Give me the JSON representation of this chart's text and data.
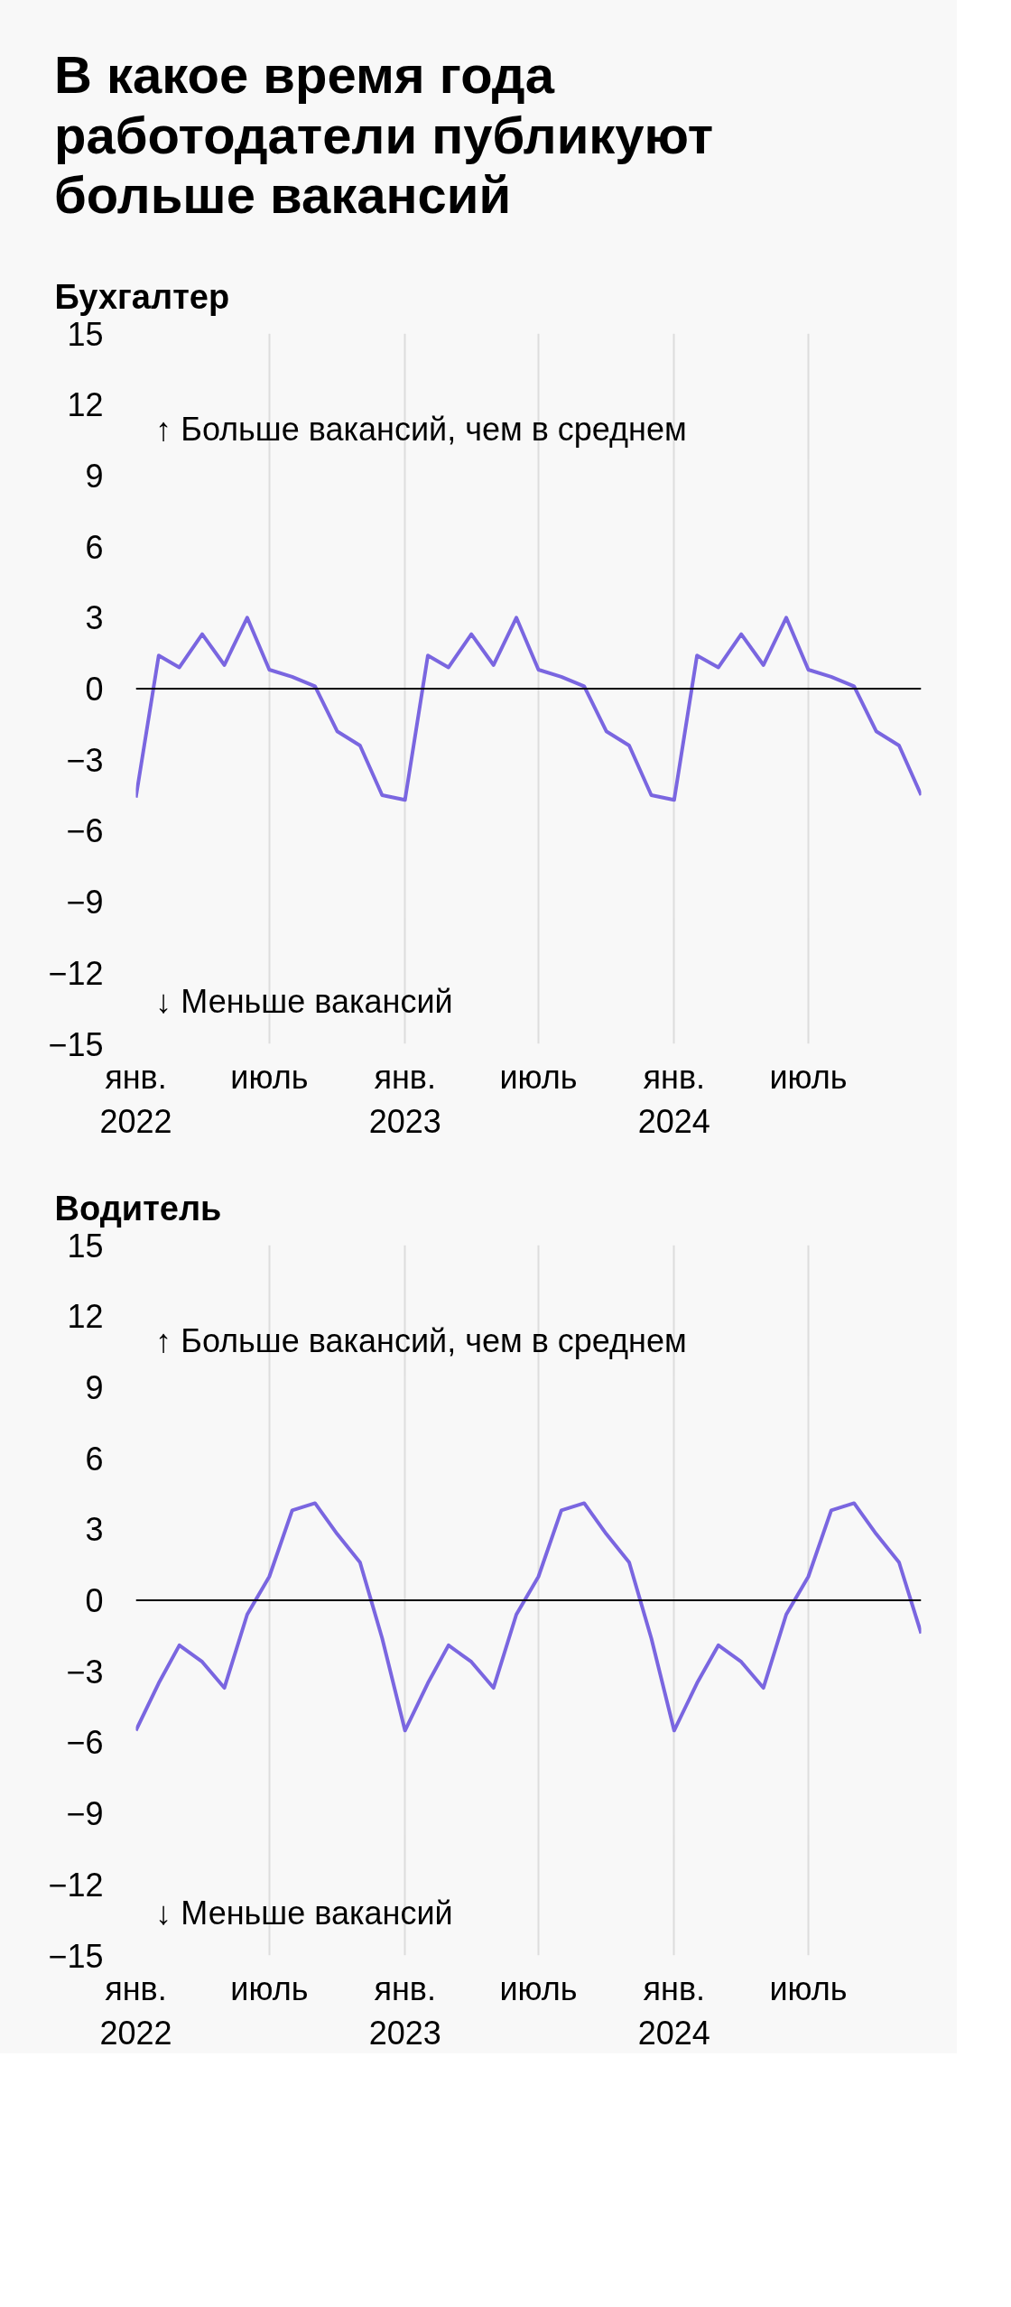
{
  "chart_data": [
    {
      "type": "line",
      "title": "В какое время года работодатели публикуют больше вакансий",
      "subtitle": "Бухгалтер",
      "x": [
        "2022-01",
        "2022-02",
        "2022-03",
        "2022-04",
        "2022-05",
        "2022-06",
        "2022-07",
        "2022-08",
        "2022-09",
        "2022-10",
        "2022-11",
        "2022-12",
        "2023-01",
        "2023-02",
        "2023-03",
        "2023-04",
        "2023-05",
        "2023-06",
        "2023-07",
        "2023-08",
        "2023-09",
        "2023-10",
        "2023-11",
        "2023-12",
        "2024-01",
        "2024-02",
        "2024-03",
        "2024-04",
        "2024-05",
        "2024-06",
        "2024-07",
        "2024-08",
        "2024-09",
        "2024-10",
        "2024-11",
        "2024-12"
      ],
      "series": [
        {
          "color": "#7a66e0",
          "values": [
            -4.6,
            1.4,
            0.9,
            2.3,
            1.0,
            3.0,
            0.8,
            0.5,
            0.1,
            -1.8,
            -2.4,
            -4.5,
            -4.7,
            1.4,
            0.9,
            2.3,
            1.0,
            3.0,
            0.8,
            0.5,
            0.1,
            -1.8,
            -2.4,
            -4.5,
            -4.7,
            1.4,
            0.9,
            2.3,
            1.0,
            3.0,
            0.8,
            0.5,
            0.1,
            -1.8,
            -2.4,
            -4.5
          ]
        }
      ],
      "xlim": [
        "2022-01",
        "2024-12"
      ],
      "xticks": [
        {
          "value": "2022-01",
          "label": "янв.\n2022"
        },
        {
          "value": "2022-07",
          "label": "июль"
        },
        {
          "value": "2023-01",
          "label": "янв.\n2023"
        },
        {
          "value": "2023-07",
          "label": "июль"
        },
        {
          "value": "2024-01",
          "label": "янв.\n2024"
        },
        {
          "value": "2024-07",
          "label": "июль"
        }
      ],
      "ylim": [
        -15,
        15
      ],
      "yticks": [
        -15,
        -12,
        -9,
        -6,
        -3,
        0,
        3,
        6,
        9,
        12,
        15
      ],
      "ref_lines": [
        {
          "axis": "y",
          "value": 0,
          "color": "#000000"
        }
      ],
      "annotations": [
        "↑ Больше вакансий, чем в среднем",
        "↓ Меньше вакансий"
      ],
      "grid": "x",
      "marker": "none",
      "line_style": "solid"
    },
    {
      "type": "line",
      "subtitle": "Водитель",
      "x": [
        "2022-01",
        "2022-02",
        "2022-03",
        "2022-04",
        "2022-05",
        "2022-06",
        "2022-07",
        "2022-08",
        "2022-09",
        "2022-10",
        "2022-11",
        "2022-12",
        "2023-01",
        "2023-02",
        "2023-03",
        "2023-04",
        "2023-05",
        "2023-06",
        "2023-07",
        "2023-08",
        "2023-09",
        "2023-10",
        "2023-11",
        "2023-12",
        "2024-01",
        "2024-02",
        "2024-03",
        "2024-04",
        "2024-05",
        "2024-06",
        "2024-07",
        "2024-08",
        "2024-09",
        "2024-10",
        "2024-11",
        "2024-12"
      ],
      "series": [
        {
          "color": "#7a66e0",
          "values": [
            -5.5,
            -3.5,
            -1.9,
            -2.6,
            -3.7,
            -0.6,
            1.0,
            3.8,
            4.1,
            2.8,
            1.6,
            -1.6,
            -5.5,
            -3.5,
            -1.9,
            -2.6,
            -3.7,
            -0.6,
            1.0,
            3.8,
            4.1,
            2.8,
            1.6,
            -1.6,
            -5.5,
            -3.5,
            -1.9,
            -2.6,
            -3.7,
            -0.6,
            1.0,
            3.8,
            4.1,
            2.8,
            1.6,
            -1.4
          ]
        }
      ],
      "xlim": [
        "2022-01",
        "2024-12"
      ],
      "xticks": [
        {
          "value": "2022-01",
          "label": "янв.\n2022"
        },
        {
          "value": "2022-07",
          "label": "июль"
        },
        {
          "value": "2023-01",
          "label": "янв.\n2023"
        },
        {
          "value": "2023-07",
          "label": "июль"
        },
        {
          "value": "2024-01",
          "label": "янв.\n2024"
        },
        {
          "value": "2024-07",
          "label": "июль"
        }
      ],
      "ylim": [
        -15,
        15
      ],
      "yticks": [
        -15,
        -12,
        -9,
        -6,
        -3,
        0,
        3,
        6,
        9,
        12,
        15
      ],
      "ref_lines": [
        {
          "axis": "y",
          "value": 0,
          "color": "#000000"
        }
      ],
      "annotations": [
        "↑ Больше вакансий, чем в среднем",
        "↓ Меньше вакансий"
      ],
      "grid": "x",
      "marker": "none",
      "line_style": "solid"
    }
  ]
}
